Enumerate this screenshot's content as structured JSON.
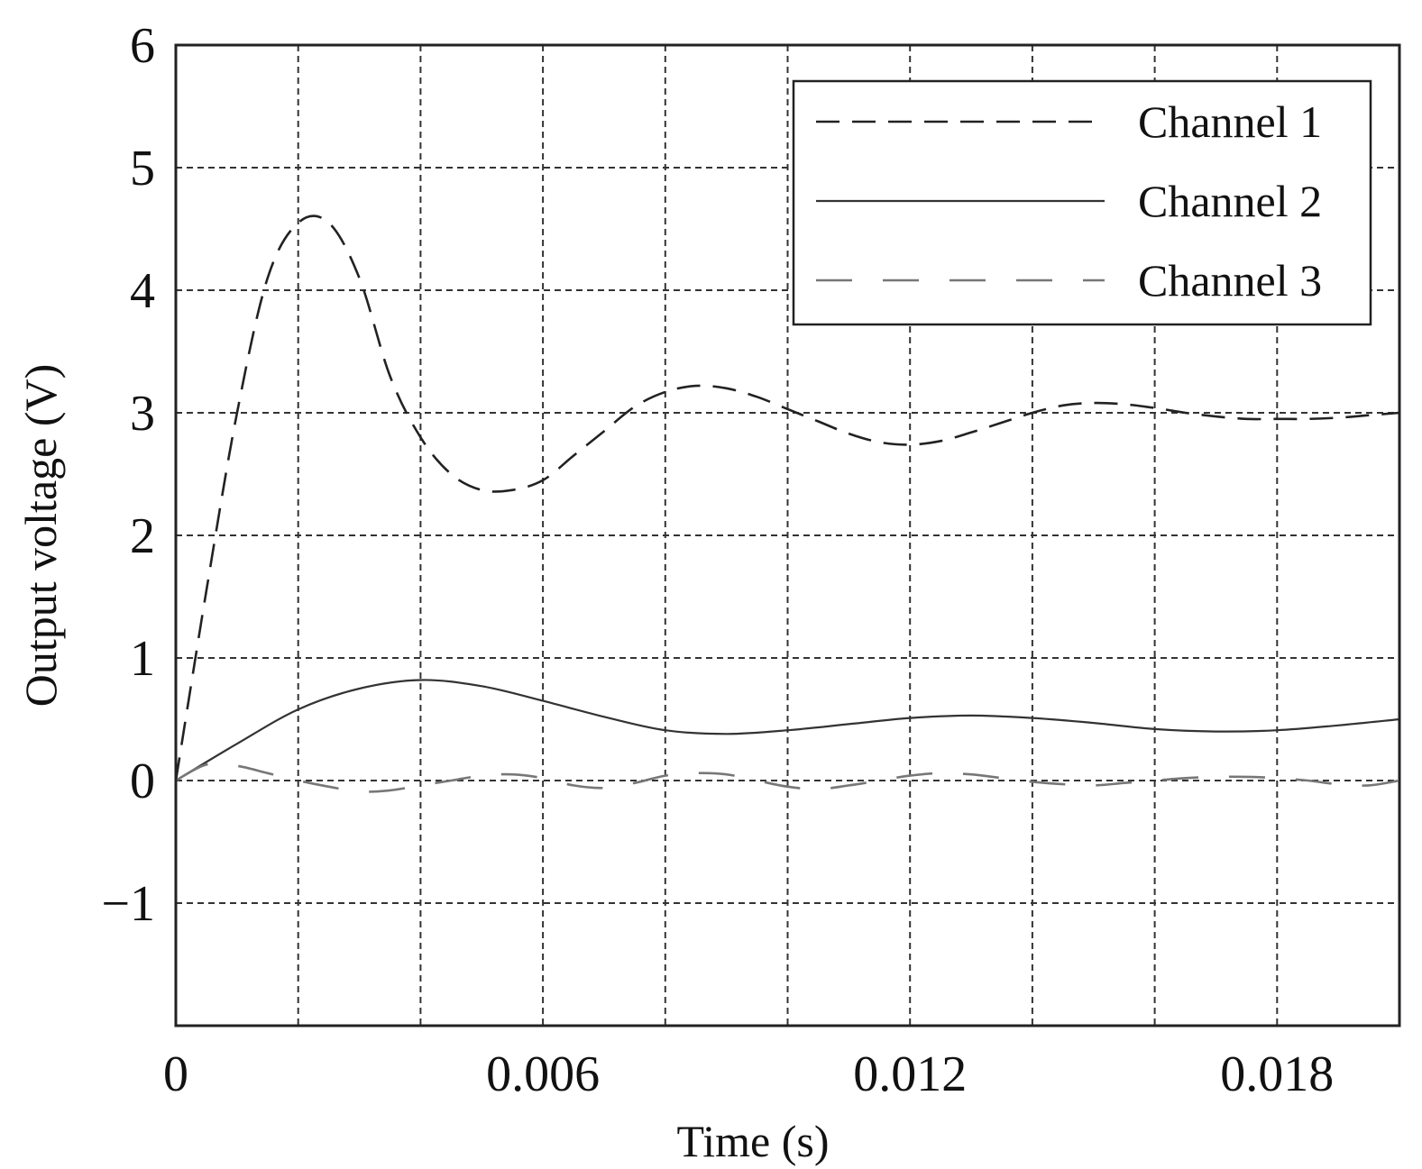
{
  "chart_data": {
    "type": "line",
    "title": "",
    "xlabel": "Time (s)",
    "ylabel": "Output voltage (V)",
    "xlim": [
      0,
      0.02
    ],
    "ylim": [
      -2,
      6
    ],
    "x_tick_labels": [
      {
        "value": 0,
        "label": "0"
      },
      {
        "value": 0.006,
        "label": "0.006"
      },
      {
        "value": 0.012,
        "label": "0.012"
      },
      {
        "value": 0.018,
        "label": "0.018"
      }
    ],
    "y_tick_labels": [
      {
        "value": 6,
        "label": "6"
      },
      {
        "value": 5,
        "label": "5"
      },
      {
        "value": 4,
        "label": "4"
      },
      {
        "value": 3,
        "label": "3"
      },
      {
        "value": 2,
        "label": "2"
      },
      {
        "value": 1,
        "label": "1"
      },
      {
        "value": 0,
        "label": "0"
      },
      {
        "value": -1,
        "label": "−1"
      }
    ],
    "x_gridlines": [
      0.002,
      0.004,
      0.006,
      0.008,
      0.01,
      0.012,
      0.014,
      0.016,
      0.018
    ],
    "y_gridlines": [
      5,
      4,
      3,
      2,
      1,
      0,
      -1
    ],
    "grid": true,
    "grid_style": "dashed",
    "legend_position": "top-right",
    "series": [
      {
        "name": "Channel 1",
        "line_style": "dashed",
        "color": "#222222",
        "x": [
          0,
          0.0005,
          0.001,
          0.0015,
          0.002,
          0.0025,
          0.003,
          0.0035,
          0.004,
          0.0045,
          0.005,
          0.0055,
          0.006,
          0.0065,
          0.007,
          0.0075,
          0.008,
          0.0085,
          0.009,
          0.0095,
          0.01,
          0.0105,
          0.011,
          0.0115,
          0.012,
          0.0125,
          0.013,
          0.0135,
          0.014,
          0.0145,
          0.015,
          0.0155,
          0.016,
          0.0165,
          0.017,
          0.0175,
          0.018,
          0.0185,
          0.019,
          0.0195,
          0.02
        ],
        "y": [
          0,
          1.55,
          3.0,
          4.1,
          4.55,
          4.55,
          4.1,
          3.3,
          2.8,
          2.5,
          2.37,
          2.37,
          2.45,
          2.65,
          2.85,
          3.05,
          3.17,
          3.22,
          3.2,
          3.13,
          3.03,
          2.93,
          2.83,
          2.76,
          2.74,
          2.77,
          2.84,
          2.92,
          3.0,
          3.06,
          3.08,
          3.07,
          3.04,
          3.0,
          2.97,
          2.95,
          2.95,
          2.95,
          2.96,
          2.98,
          3.0
        ]
      },
      {
        "name": "Channel 2",
        "line_style": "solid",
        "color": "#333333",
        "x": [
          0,
          0.001,
          0.002,
          0.003,
          0.004,
          0.005,
          0.006,
          0.007,
          0.008,
          0.009,
          0.01,
          0.011,
          0.012,
          0.013,
          0.014,
          0.015,
          0.016,
          0.017,
          0.018,
          0.019,
          0.02
        ],
        "y": [
          0,
          0.3,
          0.58,
          0.75,
          0.82,
          0.77,
          0.65,
          0.52,
          0.41,
          0.38,
          0.41,
          0.46,
          0.51,
          0.53,
          0.51,
          0.47,
          0.42,
          0.4,
          0.41,
          0.45,
          0.5
        ]
      },
      {
        "name": "Channel 3",
        "line_style": "long-dashed",
        "color": "#777777",
        "x": [
          0,
          0.0005,
          0.001,
          0.0015,
          0.002,
          0.0025,
          0.003,
          0.0035,
          0.004,
          0.0045,
          0.005,
          0.0055,
          0.006,
          0.0065,
          0.007,
          0.0075,
          0.008,
          0.0085,
          0.009,
          0.0095,
          0.01,
          0.0105,
          0.011,
          0.0115,
          0.012,
          0.0125,
          0.013,
          0.0135,
          0.014,
          0.0145,
          0.015,
          0.0155,
          0.016,
          0.0165,
          0.017,
          0.0175,
          0.018,
          0.0185,
          0.019,
          0.0195,
          0.02
        ],
        "y": [
          0,
          0.13,
          0.12,
          0.06,
          0.0,
          -0.05,
          -0.09,
          -0.08,
          -0.04,
          0.0,
          0.04,
          0.05,
          0.02,
          -0.04,
          -0.06,
          -0.02,
          0.04,
          0.06,
          0.05,
          0.0,
          -0.05,
          -0.07,
          -0.04,
          0.0,
          0.04,
          0.06,
          0.05,
          0.02,
          -0.01,
          -0.03,
          -0.04,
          -0.02,
          0.0,
          0.02,
          0.03,
          0.03,
          0.02,
          0.0,
          -0.03,
          -0.04,
          0.0
        ]
      }
    ]
  }
}
